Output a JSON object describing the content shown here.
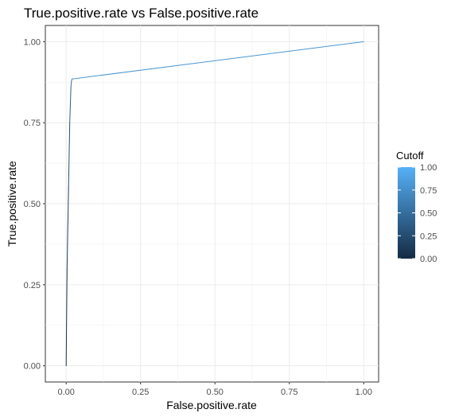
{
  "chart_data": {
    "type": "line",
    "title": "True.positive.rate vs False.positive.rate",
    "xlabel": "False.positive.rate",
    "ylabel": "True.positive.rate",
    "xlim": [
      -0.07,
      1.05
    ],
    "ylim": [
      -0.05,
      1.05
    ],
    "x_ticks": [
      0.0,
      0.25,
      0.5,
      0.75,
      1.0
    ],
    "x_tick_labels": [
      "0.00",
      "0.25",
      "0.50",
      "0.75",
      "1.00"
    ],
    "y_ticks": [
      0.0,
      0.25,
      0.5,
      0.75,
      1.0
    ],
    "y_tick_labels": [
      "0.00",
      "0.25",
      "0.50",
      "0.75",
      "1.00"
    ],
    "grid": true,
    "series": [
      {
        "x": [
          0.0,
          0.003,
          0.008,
          0.012,
          0.016,
          0.018,
          0.02,
          1.0
        ],
        "y": [
          0.0,
          0.3,
          0.55,
          0.75,
          0.86,
          0.88,
          0.885,
          1.0
        ],
        "cutoff": [
          0.0,
          0.1,
          0.2,
          0.3,
          0.45,
          0.55,
          0.6,
          1.0
        ]
      }
    ],
    "legend": {
      "title": "Cutoff",
      "placement": "right",
      "ticks": [
        1.0,
        0.75,
        0.5,
        0.25,
        0.0
      ],
      "labels": [
        "1.00",
        "0.75",
        "0.50",
        "0.25",
        "0.00"
      ],
      "color_low": "#132B43",
      "color_high": "#56B1F7"
    }
  }
}
